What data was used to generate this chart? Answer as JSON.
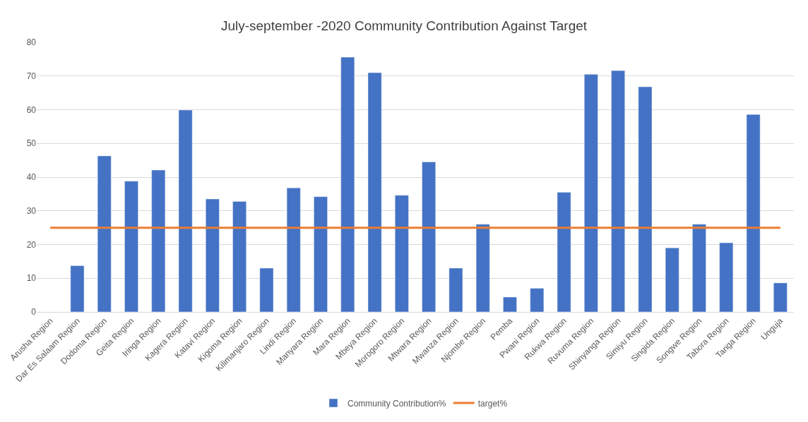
{
  "chart_data": {
    "type": "bar",
    "title": "July-september -2020 Community Contribution Against Target",
    "categories": [
      "Arusha Region",
      "Dar Es Salaam Region",
      "Dodoma Region",
      "Geita Region",
      "Iringa Region",
      "Kagera Region",
      "Katavi Region",
      "Kigoma Region",
      "Kilimanjaro Region",
      "Lindi Region",
      "Manyara Region",
      "Mara Region",
      "Mbeya Region",
      "Morogoro Region",
      "Mtwara Region",
      "Mwanza Region",
      "Njombe Region",
      "Pemba",
      "Pwani Region",
      "Rukwa Region",
      "Ruvuma Region",
      "Shinyanga Region",
      "Simiyu Region",
      "Singida Region",
      "Songwe Region",
      "Tabora Region",
      "Tanga Region",
      "Unguja"
    ],
    "series": [
      {
        "name": "Community Contribution%",
        "color": "#4472c4",
        "values": [
          null,
          13.7,
          46.3,
          38.8,
          42.1,
          59.9,
          33.5,
          32.8,
          13.0,
          36.8,
          34.2,
          75.6,
          71.0,
          34.6,
          44.5,
          13.0,
          26.0,
          4.4,
          7.0,
          35.5,
          70.5,
          71.6,
          66.8,
          19.0,
          26.0,
          20.5,
          58.6,
          8.6
        ]
      },
      {
        "name": "target%",
        "color": "#ed7d31",
        "type": "line",
        "values": [
          25,
          25,
          25,
          25,
          25,
          25,
          25,
          25,
          25,
          25,
          25,
          25,
          25,
          25,
          25,
          25,
          25,
          25,
          25,
          25,
          25,
          25,
          25,
          25,
          25,
          25,
          25,
          25
        ]
      }
    ],
    "ylim": [
      0,
      80
    ],
    "yticks": [
      0,
      10,
      20,
      30,
      40,
      50,
      60,
      70,
      80
    ],
    "grid": "y",
    "legend": "bottom"
  }
}
